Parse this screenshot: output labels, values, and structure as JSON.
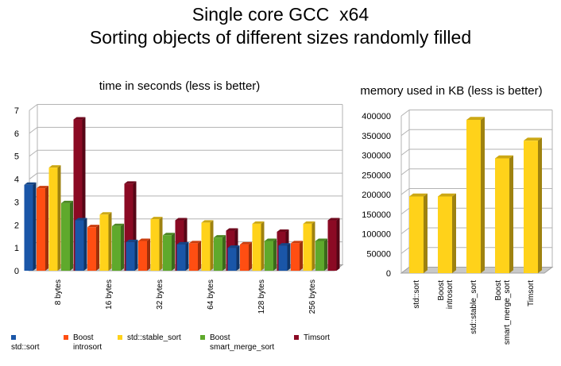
{
  "title_line1": "Single core GCC  x64",
  "title_line2": "Sorting objects of different sizes randomly filled",
  "colors": {
    "std_sort": "#1a56a8",
    "boost_introsort": "#ff4e12",
    "std_stable_sort": "#ffd21a",
    "boost_smart_merge_sort": "#5fa92c",
    "timsort": "#8b0a24"
  },
  "legend": [
    {
      "line1": "",
      "line2": "std::sort"
    },
    {
      "line1": "Boost",
      "line2": "introsort"
    },
    {
      "line1": "std::stable_sort",
      "line2": ""
    },
    {
      "line1": "Boost",
      "line2": "smart_merge_sort"
    },
    {
      "line1": "Timsort",
      "line2": ""
    }
  ],
  "chart_data": [
    {
      "type": "bar",
      "title": "time in seconds (less is better)",
      "categories": [
        "8 bytes",
        "16 bytes",
        "32 bytes",
        "64 bytes",
        "128 bytes",
        "256 bytes"
      ],
      "ylim": [
        0,
        7
      ],
      "yticks": [
        "0",
        "1",
        "2",
        "3",
        "4",
        "5",
        "6",
        "7"
      ],
      "grid": true,
      "series": [
        {
          "name": "std::sort",
          "color": "#1a56a8",
          "values": [
            3.75,
            2.2,
            1.25,
            1.15,
            1.0,
            1.1
          ]
        },
        {
          "name": "Boost introsort",
          "color": "#ff4e12",
          "values": [
            3.6,
            1.9,
            1.3,
            1.2,
            1.15,
            1.2
          ]
        },
        {
          "name": "std::stable_sort",
          "color": "#ffd21a",
          "values": [
            4.5,
            2.45,
            2.25,
            2.1,
            2.05,
            2.05
          ]
        },
        {
          "name": "Boost smart_merge_sort",
          "color": "#5fa92c",
          "values": [
            2.95,
            1.95,
            1.55,
            1.45,
            1.3,
            1.3
          ]
        },
        {
          "name": "Timsort",
          "color": "#8b0a24",
          "values": [
            6.6,
            3.8,
            2.2,
            1.75,
            1.7,
            2.2
          ]
        }
      ]
    },
    {
      "type": "bar",
      "title": "memory used in KB (less is better)",
      "categories": [
        {
          "line1": "std::sort",
          "line2": ""
        },
        {
          "line1": "Boost",
          "line2": "introsort"
        },
        {
          "line1": "std::stable_sort",
          "line2": ""
        },
        {
          "line1": "Boost",
          "line2": "smart_merge_sort"
        },
        {
          "line1": "Timsort",
          "line2": ""
        }
      ],
      "ylim": [
        0,
        400000
      ],
      "yticks": [
        "0",
        "50000",
        "100000",
        "150000",
        "200000",
        "250000",
        "300000",
        "350000",
        "400000"
      ],
      "grid": true,
      "color": "#ffd21a",
      "values": [
        195000,
        195000,
        390000,
        292000,
        337000
      ]
    }
  ]
}
